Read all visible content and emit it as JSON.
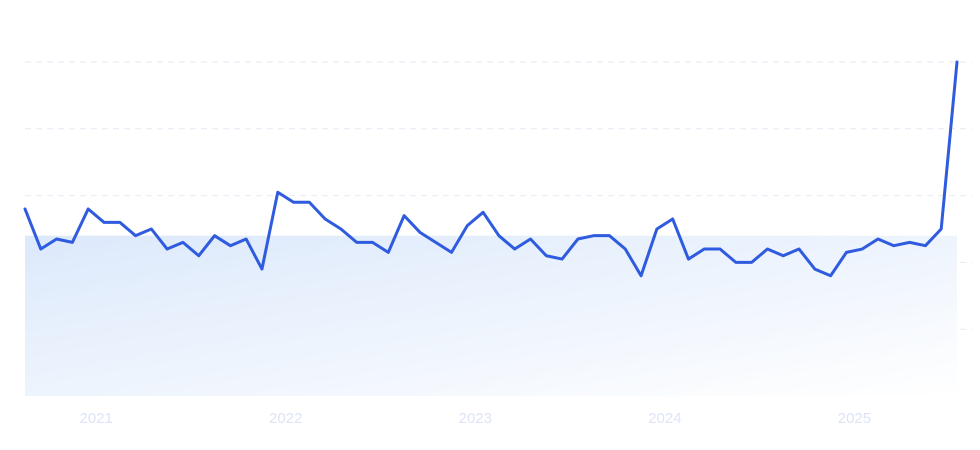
{
  "chart_data": {
    "type": "line",
    "x_start": "2020-09",
    "x_end": "2025-08",
    "ylim": [
      0,
      100
    ],
    "grid": true,
    "xtick_labels": [
      {
        "label": "2021",
        "at": "2021-01"
      },
      {
        "label": "2022",
        "at": "2022-01"
      },
      {
        "label": "2023",
        "at": "2023-01"
      },
      {
        "label": "2024",
        "at": "2024-01"
      },
      {
        "label": "2025",
        "at": "2025-01"
      }
    ],
    "band_value": 48,
    "colors": {
      "line": "#2f5bdf",
      "band_start": "#dce9fb",
      "band_end": "#ffffff",
      "grid": "#e7eaf5",
      "tick_text": "#dfe3f7"
    },
    "series": [
      {
        "x": [
          "2020-09",
          "2020-10",
          "2020-11",
          "2020-12",
          "2021-01",
          "2021-02",
          "2021-03",
          "2021-04",
          "2021-05",
          "2021-06",
          "2021-07",
          "2021-08",
          "2021-09",
          "2021-10",
          "2021-11",
          "2021-12",
          "2022-01",
          "2022-02",
          "2022-03",
          "2022-04",
          "2022-05",
          "2022-06",
          "2022-07",
          "2022-08",
          "2022-09",
          "2022-10",
          "2022-11",
          "2022-12",
          "2023-01",
          "2023-02",
          "2023-03",
          "2023-04",
          "2023-05",
          "2023-06",
          "2023-07",
          "2023-08",
          "2023-09",
          "2023-10",
          "2023-11",
          "2023-12",
          "2024-01",
          "2024-02",
          "2024-03",
          "2024-04",
          "2024-05",
          "2024-06",
          "2024-07",
          "2024-08",
          "2024-09",
          "2024-10",
          "2024-11",
          "2024-12",
          "2025-01",
          "2025-02",
          "2025-03",
          "2025-04",
          "2025-05",
          "2025-06",
          "2025-07",
          "2025-08"
        ],
        "values": [
          56,
          44,
          47,
          46,
          56,
          52,
          52,
          48,
          50,
          44,
          46,
          42,
          48,
          45,
          47,
          38,
          61,
          58,
          58,
          53,
          50,
          46,
          46,
          43,
          54,
          49,
          46,
          43,
          51,
          55,
          48,
          44,
          47,
          42,
          41,
          47,
          48,
          48,
          44,
          36,
          50,
          53,
          41,
          44,
          44,
          40,
          40,
          44,
          42,
          44,
          38,
          36,
          43,
          44,
          47,
          45,
          46,
          45,
          50,
          100
        ]
      }
    ]
  }
}
